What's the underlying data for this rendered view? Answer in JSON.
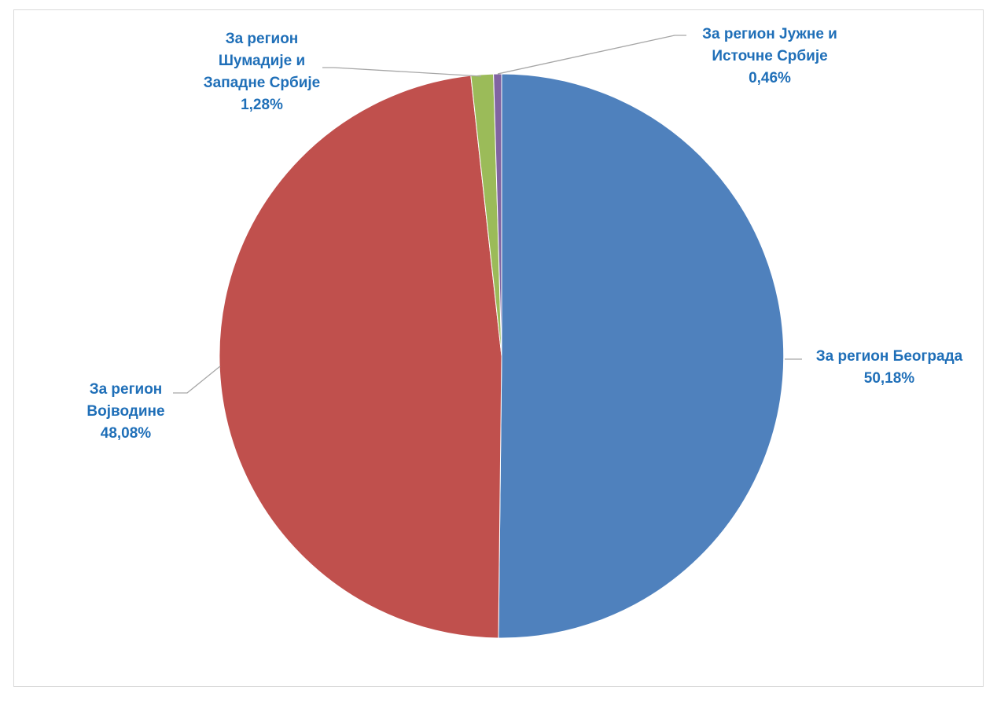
{
  "chart_data": {
    "type": "pie",
    "title": "",
    "label_color": "#1F6FB8",
    "leader_color": "#a6a6a6",
    "slices": [
      {
        "name": "За регион Београда",
        "value": 50.18,
        "value_label": "50,18%",
        "label_lines": [
          "За регион Београда"
        ],
        "color": "#4F81BD"
      },
      {
        "name": "За регион Војводине",
        "value": 48.08,
        "value_label": "48,08%",
        "label_lines": [
          "За регион",
          "Војводине"
        ],
        "color": "#C0504D"
      },
      {
        "name": "За регион Шумадије и Западне Србије",
        "value": 1.28,
        "value_label": "1,28%",
        "label_lines": [
          "За регион",
          "Шумадије и",
          "Западне Србије"
        ],
        "color": "#9BBB59"
      },
      {
        "name": "За регион Јужне и Источне Србије",
        "value": 0.46,
        "value_label": "0,46%",
        "label_lines": [
          "За регион Јужне и",
          "Источне Србије"
        ],
        "color": "#8064A2"
      }
    ]
  }
}
